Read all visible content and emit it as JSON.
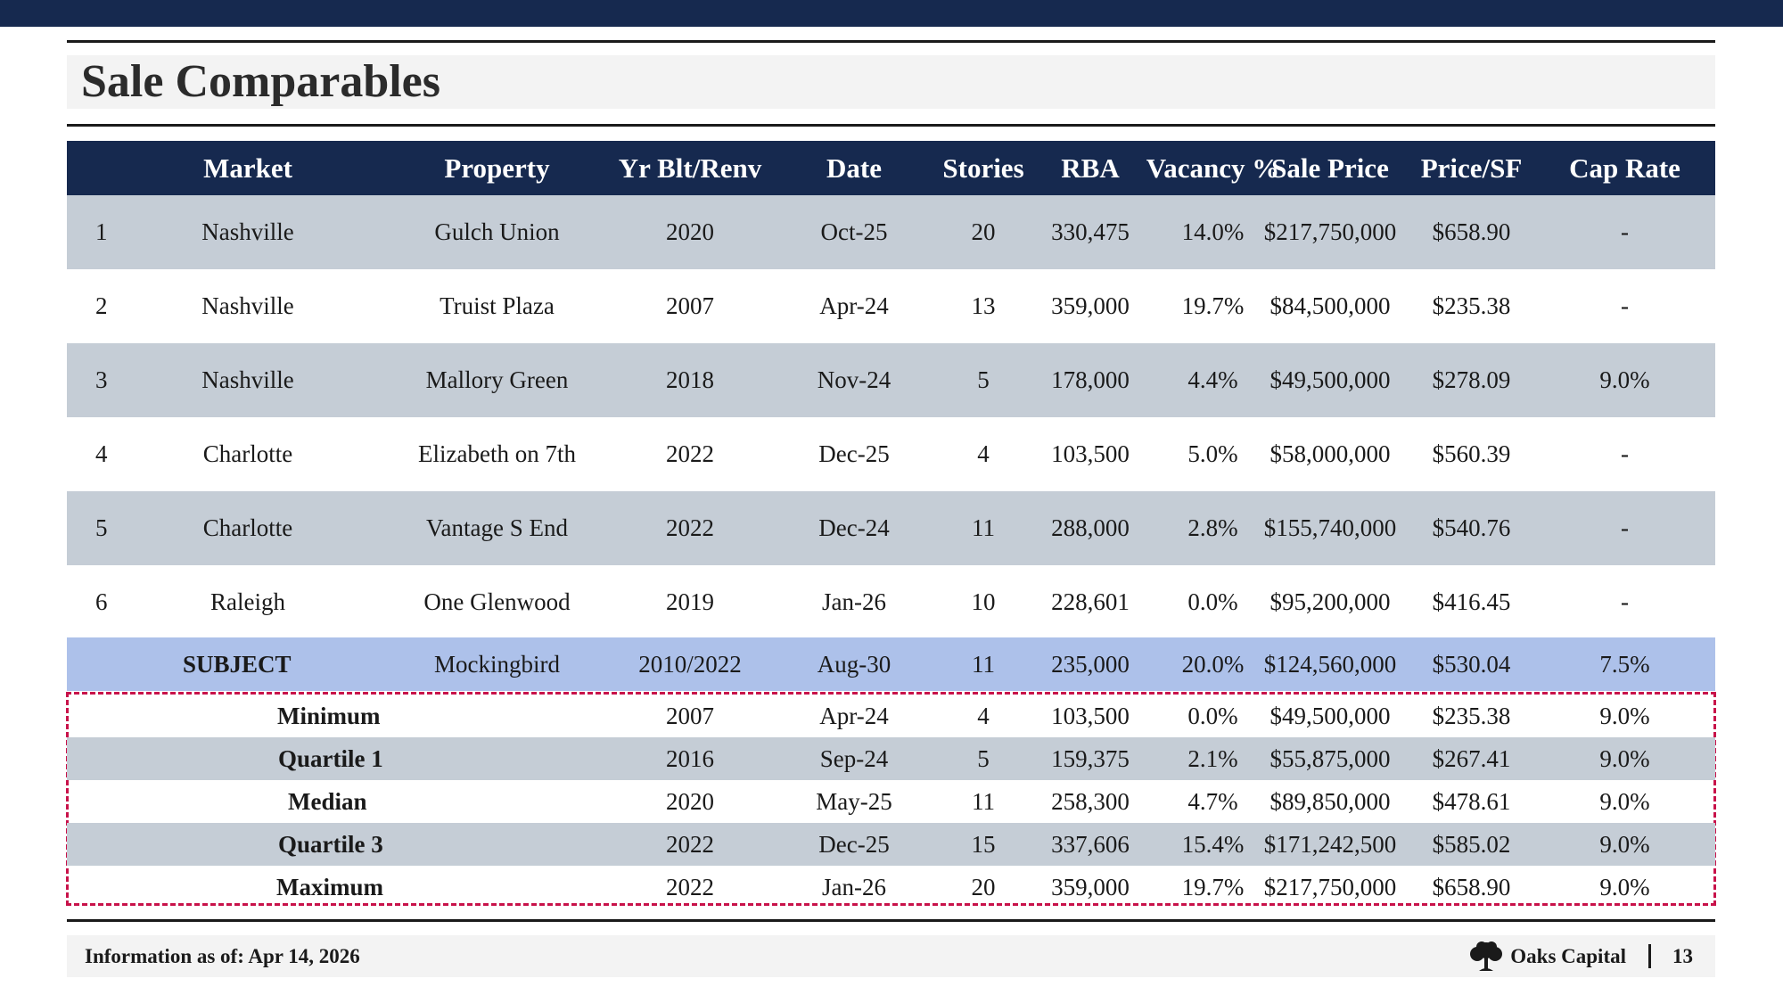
{
  "title": "Sale Comparables",
  "columns": [
    "Market",
    "Property",
    "Yr Blt/Renv",
    "Date",
    "Stories",
    "RBA",
    "Vacancy %",
    "Sale Price",
    "Price/SF",
    "Cap Rate"
  ],
  "comps": [
    {
      "num": "1",
      "market": "Nashville",
      "property": "Gulch Union",
      "yr": "2020",
      "date": "Oct-25",
      "stories": "20",
      "rba": "330,475",
      "vacancy": "14.0%",
      "price": "$217,750,000",
      "psf": "$658.90",
      "cap": "-"
    },
    {
      "num": "2",
      "market": "Nashville",
      "property": "Truist Plaza",
      "yr": "2007",
      "date": "Apr-24",
      "stories": "13",
      "rba": "359,000",
      "vacancy": "19.7%",
      "price": "$84,500,000",
      "psf": "$235.38",
      "cap": "-"
    },
    {
      "num": "3",
      "market": "Nashville",
      "property": "Mallory Green",
      "yr": "2018",
      "date": "Nov-24",
      "stories": "5",
      "rba": "178,000",
      "vacancy": "4.4%",
      "price": "$49,500,000",
      "psf": "$278.09",
      "cap": "9.0%"
    },
    {
      "num": "4",
      "market": "Charlotte",
      "property": "Elizabeth on 7th",
      "yr": "2022",
      "date": "Dec-25",
      "stories": "4",
      "rba": "103,500",
      "vacancy": "5.0%",
      "price": "$58,000,000",
      "psf": "$560.39",
      "cap": "-"
    },
    {
      "num": "5",
      "market": "Charlotte",
      "property": "Vantage S End",
      "yr": "2022",
      "date": "Dec-24",
      "stories": "11",
      "rba": "288,000",
      "vacancy": "2.8%",
      "price": "$155,740,000",
      "psf": "$540.76",
      "cap": "-"
    },
    {
      "num": "6",
      "market": "Raleigh",
      "property": "One Glenwood",
      "yr": "2019",
      "date": "Jan-26",
      "stories": "10",
      "rba": "228,601",
      "vacancy": "0.0%",
      "price": "$95,200,000",
      "psf": "$416.45",
      "cap": "-"
    }
  ],
  "subject": {
    "label": "SUBJECT",
    "property": "Mockingbird",
    "yr": "2010/2022",
    "date": "Aug-30",
    "stories": "11",
    "rba": "235,000",
    "vacancy": "20.0%",
    "price": "$124,560,000",
    "psf": "$530.04",
    "cap": "7.5%"
  },
  "stats": [
    {
      "label": "Minimum",
      "yr": "2007",
      "date": "Apr-24",
      "stories": "4",
      "rba": "103,500",
      "vacancy": "0.0%",
      "price": "$49,500,000",
      "psf": "$235.38",
      "cap": "9.0%"
    },
    {
      "label": "Quartile 1",
      "yr": "2016",
      "date": "Sep-24",
      "stories": "5",
      "rba": "159,375",
      "vacancy": "2.1%",
      "price": "$55,875,000",
      "psf": "$267.41",
      "cap": "9.0%"
    },
    {
      "label": "Median",
      "yr": "2020",
      "date": "May-25",
      "stories": "11",
      "rba": "258,300",
      "vacancy": "4.7%",
      "price": "$89,850,000",
      "psf": "$478.61",
      "cap": "9.0%"
    },
    {
      "label": "Quartile 3",
      "yr": "2022",
      "date": "Dec-25",
      "stories": "15",
      "rba": "337,606",
      "vacancy": "15.4%",
      "price": "$171,242,500",
      "psf": "$585.02",
      "cap": "9.0%"
    },
    {
      "label": "Maximum",
      "yr": "2022",
      "date": "Jan-26",
      "stories": "20",
      "rba": "359,000",
      "vacancy": "19.7%",
      "price": "$217,750,000",
      "psf": "$658.90",
      "cap": "9.0%"
    }
  ],
  "footer": {
    "info": "Information as of: Apr 14, 2026",
    "brand": "Oaks Capital",
    "page": "13",
    "logo_icon": "oak-tree-icon"
  },
  "colors": {
    "navy": "#16294f",
    "row_shade": "#c5cdd6",
    "subject_row": "#adc1ea",
    "dashed_border": "#c8124a"
  }
}
